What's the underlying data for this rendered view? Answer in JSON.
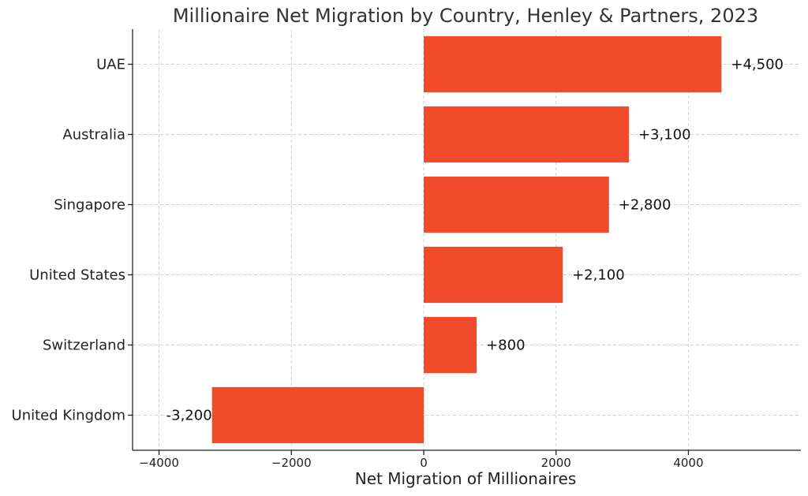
{
  "chart_data": {
    "type": "bar",
    "orientation": "horizontal",
    "title": "Millionaire Net Migration by Country, Henley & Partners, 2023",
    "xlabel": "Net Migration of Millionaires",
    "ylabel": "",
    "categories": [
      "UAE",
      "Australia",
      "Singapore",
      "United States",
      "Switzerland",
      "United Kingdom"
    ],
    "values": [
      4500,
      3100,
      2800,
      2100,
      800,
      -3200
    ],
    "data_labels": [
      "+4,500",
      "+3,100",
      "+2,800",
      "+2,100",
      "+800",
      "-3,200"
    ],
    "xticks": [
      -4000,
      -2000,
      0,
      2000,
      4000
    ],
    "xtick_labels": [
      "−4000",
      "−2000",
      "0",
      "2000",
      "4000"
    ],
    "xlim": [
      -4400,
      5700
    ],
    "grid": true,
    "bar_color": "#f24b2c"
  }
}
